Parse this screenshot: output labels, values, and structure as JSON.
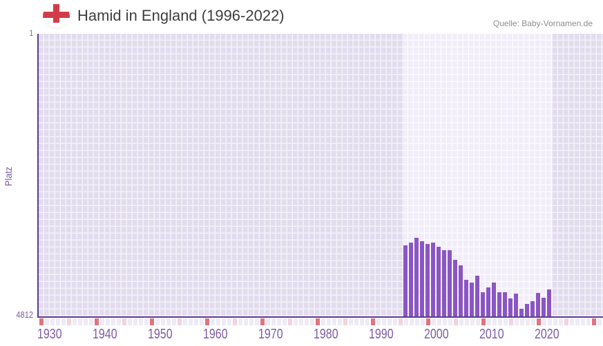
{
  "header": {
    "title": "Hamid in England (1996-2022)",
    "source": "Quelle: Baby-Vornamen.de"
  },
  "colors": {
    "bar": "#8a56c2",
    "axis": "#5a3994",
    "label_purple": "#7d5ba6",
    "grid_cell": "#e2dcee",
    "band_cell": "#f1edf9",
    "strip_default": "#eeebf6",
    "strip_decade_red": "#e0737f",
    "strip_half_decade_pink": "#f2d3de",
    "flag_red": "#d23c48",
    "title_text": "#3e3e3e",
    "source_text": "#8d8d8d"
  },
  "chart_data": {
    "type": "bar",
    "title": "Hamid in England (1996-2022)",
    "ylabel": "Platz",
    "y_axis_inverted": true,
    "y_top_label": "1",
    "y_bottom_label": "4812",
    "ylim": [
      1,
      4812
    ],
    "x_range": [
      1930,
      2031
    ],
    "x_ticks": [
      "1930",
      "1940",
      "1950",
      "1960",
      "1970",
      "1980",
      "1990",
      "2000",
      "2010",
      "2020"
    ],
    "highlight_band": [
      1996,
      2022
    ],
    "grid": true,
    "legend": "none",
    "categories": [
      1996,
      1997,
      1998,
      1999,
      2000,
      2001,
      2002,
      2003,
      2004,
      2005,
      2006,
      2007,
      2008,
      2009,
      2010,
      2011,
      2012,
      2013,
      2014,
      2015,
      2016,
      2017,
      2018,
      2019,
      2020,
      2021,
      2022
    ],
    "values": [
      3590,
      3550,
      3465,
      3520,
      3570,
      3550,
      3615,
      3675,
      3675,
      3845,
      3935,
      4185,
      4225,
      4115,
      4385,
      4310,
      4230,
      4385,
      4390,
      4500,
      4410,
      4675,
      4590,
      4545,
      4405,
      4480,
      4340
    ],
    "timeline_strip": {
      "start_year": 1930,
      "end_year": 2031,
      "red_year_modulo": 10,
      "pink_year_modulo": 5
    }
  }
}
